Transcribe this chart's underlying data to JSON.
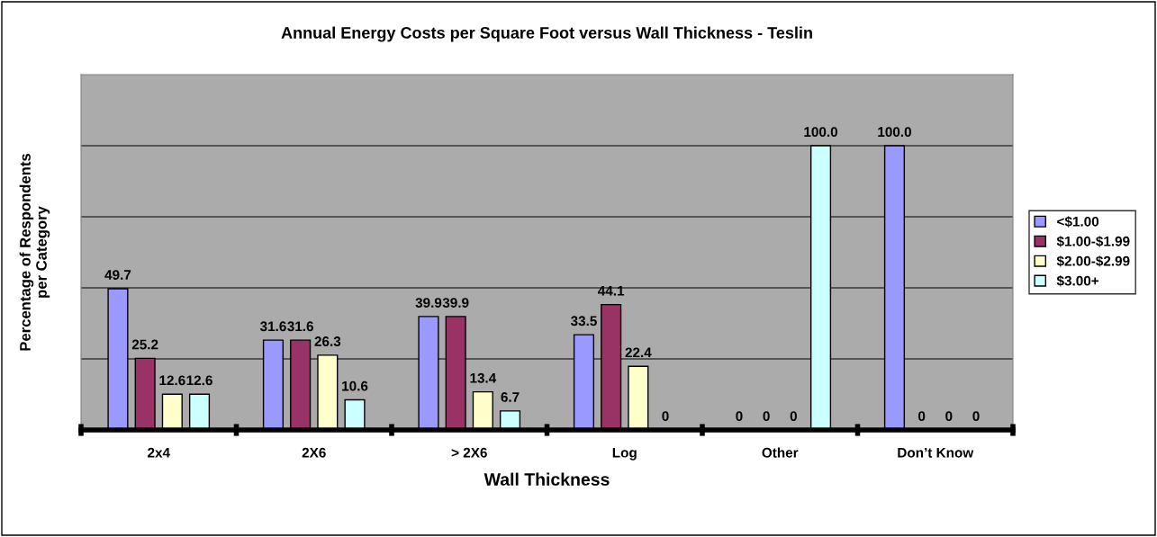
{
  "chart_data": {
    "type": "bar",
    "title": "Annual Energy Costs per Square Foot versus Wall Thickness - Teslin",
    "xlabel": "Wall Thickness",
    "ylabel": "Percentage of Respondents\nper Category",
    "categories": [
      "2x4",
      "2X6",
      "> 2X6",
      "Log",
      "Other",
      "Don’t Know"
    ],
    "series": [
      {
        "name": "<$1.00",
        "color": "#9999ff",
        "values": [
          49.7,
          31.6,
          39.9,
          33.5,
          0,
          100.0
        ],
        "value_labels": [
          "49.7",
          "31.6",
          "39.9",
          "33.5",
          "0",
          "100.0"
        ]
      },
      {
        "name": "$1.00-$1.99",
        "color": "#993366",
        "values": [
          25.2,
          31.6,
          39.9,
          44.1,
          0,
          0
        ],
        "value_labels": [
          "25.2",
          "31.6",
          "39.9",
          "44.1",
          "0",
          "0"
        ]
      },
      {
        "name": "$2.00-$2.99",
        "color": "#ffffcc",
        "values": [
          12.6,
          26.3,
          13.4,
          22.4,
          0,
          0
        ],
        "value_labels": [
          "12.6",
          "26.3",
          "13.4",
          "22.4",
          "0",
          "0"
        ]
      },
      {
        "name": "$3.00+",
        "color": "#ccffff",
        "values": [
          12.6,
          10.6,
          6.7,
          0,
          100.0,
          0
        ],
        "value_labels": [
          "12.6",
          "10.6",
          "6.7",
          "0",
          "100.0",
          "0"
        ]
      }
    ],
    "ylim": [
      0,
      125
    ],
    "yticks": [
      {
        "value": 25,
        "label": null
      },
      {
        "value": 50,
        "label": null
      },
      {
        "value": 75,
        "label": null
      },
      {
        "value": 100,
        "label": null
      }
    ],
    "tick_labels": "x",
    "grid": "y",
    "legend": "right"
  }
}
